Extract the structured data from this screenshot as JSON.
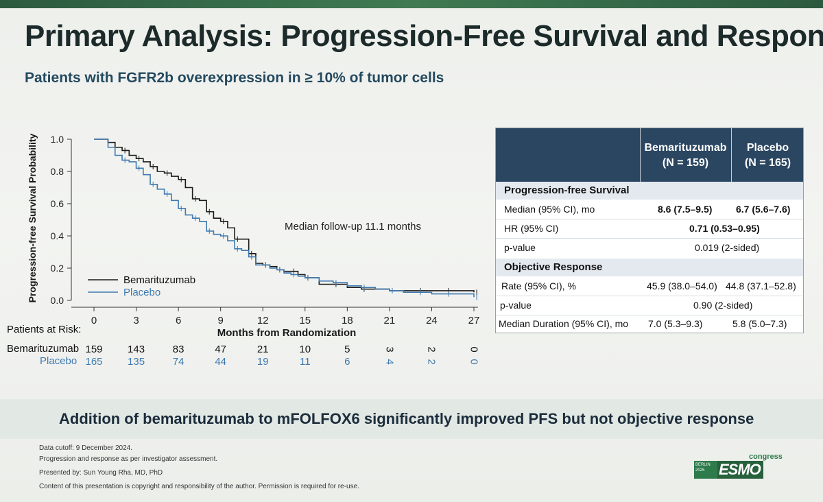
{
  "slide": {
    "title": "Primary Analysis: Progression-Free Survival and Response",
    "subtitle": "Patients with FGFR2b overexpression in ≥ 10% of tumor cells",
    "annotation": "Median follow-up 11.1 months",
    "conclusion": "Addition of bemarituzumab to mFOLFOX6 significantly improved PFS but not objective response",
    "footnotes": [
      "Data cutoff: 9 December 2024.",
      "Progression and response as per investigator assessment.",
      "Presented by: Sun Young Rha, MD, PhD",
      "Content of this presentation is copyright and responsibility of the author. Permission is required for re-use."
    ],
    "logo": {
      "badge": "BERLIN 2025",
      "word": "ESMO",
      "tag": "congress"
    }
  },
  "colors": {
    "bemarituzumab": "#1a1a1a",
    "placebo": "#3e79b0",
    "table_header": "#2b4661"
  },
  "chart_data": {
    "type": "line",
    "title": "",
    "xlabel": "Months from Randomization",
    "ylabel": "Progression-free Survival Probability",
    "xlim": [
      0,
      27
    ],
    "ylim": [
      0,
      1.0
    ],
    "xticks": [
      "0",
      "3",
      "6",
      "9",
      "12",
      "15",
      "18",
      "21",
      "24",
      "27"
    ],
    "yticks": [
      "0.0",
      "0.2",
      "0.4",
      "0.6",
      "0.8",
      "1.0"
    ],
    "legend": [
      "Bemarituzumab",
      "Placebo"
    ],
    "series": [
      {
        "name": "Bemarituzumab",
        "x": [
          0,
          1,
          1.5,
          2,
          2.5,
          3,
          3.5,
          4,
          4.5,
          5,
          5.5,
          6,
          6.5,
          7,
          7.5,
          8,
          8.5,
          9,
          9.5,
          10,
          10.5,
          11,
          11.5,
          12,
          12.5,
          13,
          13.5,
          14,
          14.5,
          15,
          16,
          17,
          18,
          19,
          20,
          21,
          22,
          23,
          24,
          25,
          26,
          27
        ],
        "y": [
          1.0,
          0.98,
          0.95,
          0.93,
          0.9,
          0.88,
          0.86,
          0.83,
          0.8,
          0.79,
          0.77,
          0.75,
          0.7,
          0.63,
          0.62,
          0.55,
          0.51,
          0.49,
          0.45,
          0.38,
          0.38,
          0.29,
          0.23,
          0.22,
          0.21,
          0.19,
          0.18,
          0.18,
          0.16,
          0.14,
          0.1,
          0.1,
          0.08,
          0.07,
          0.07,
          0.06,
          0.06,
          0.06,
          0.06,
          0.06,
          0.06,
          0.05
        ]
      },
      {
        "name": "Placebo",
        "x": [
          0,
          1,
          1.5,
          2,
          2.5,
          3,
          3.5,
          4,
          4.5,
          5,
          5.5,
          6,
          6.5,
          7,
          7.5,
          8,
          8.5,
          9,
          9.5,
          10,
          10.5,
          11,
          11.5,
          12,
          12.5,
          13,
          13.5,
          14,
          14.5,
          15,
          16,
          17,
          18,
          19,
          20,
          21,
          22,
          23,
          24,
          25,
          26,
          27
        ],
        "y": [
          1.0,
          0.95,
          0.9,
          0.87,
          0.86,
          0.82,
          0.78,
          0.72,
          0.69,
          0.66,
          0.62,
          0.57,
          0.53,
          0.51,
          0.49,
          0.43,
          0.41,
          0.4,
          0.37,
          0.32,
          0.31,
          0.27,
          0.22,
          0.22,
          0.2,
          0.19,
          0.17,
          0.16,
          0.15,
          0.14,
          0.12,
          0.11,
          0.09,
          0.08,
          0.07,
          0.06,
          0.05,
          0.05,
          0.04,
          0.04,
          0.04,
          0.02
        ]
      }
    ]
  },
  "risk_table": {
    "header": "Patients at Risk:",
    "rows": [
      {
        "label": "Bemarituzumab",
        "values": [
          "159",
          "143",
          "83",
          "47",
          "21",
          "10",
          "5",
          "3",
          "2",
          "0"
        ]
      },
      {
        "label": "Placebo",
        "values": [
          "165",
          "135",
          "74",
          "44",
          "19",
          "11",
          "6",
          "4",
          "2",
          "0"
        ]
      }
    ]
  },
  "results_table": {
    "col1": "Bemarituzumab (N = 159)",
    "col2": "Placebo (N = 165)",
    "col1_line1": "Bemarituzumab",
    "col1_line2": "(N = 159)",
    "col2_line1": "Placebo",
    "col2_line2": "(N = 165)",
    "sections": [
      {
        "title": "Progression-free Survival",
        "rows": [
          {
            "label": "Median (95% CI), mo",
            "v1": "8.6 (7.5–9.5)",
            "v2": "6.7 (5.6–7.6)",
            "bold": true
          },
          {
            "label": "HR (95% CI)",
            "span": "0.71 (0.53–0.95)",
            "bold": true
          },
          {
            "label": "p-value",
            "span": "0.019 (2-sided)",
            "bold": false
          }
        ]
      },
      {
        "title": "Objective Response",
        "rows": [
          {
            "label": "Rate (95% CI), %",
            "v1": "45.9 (38.0–54.0)",
            "v2": "44.8 (37.1–52.8)",
            "bold": false
          },
          {
            "label": "p-value",
            "span": "0.90 (2-sided)",
            "bold": false
          },
          {
            "label": "Median Duration (95% CI), mo",
            "v1": "7.0 (5.3–9.3)",
            "v2": "5.8 (5.0–7.3)",
            "bold": false
          }
        ]
      }
    ]
  }
}
